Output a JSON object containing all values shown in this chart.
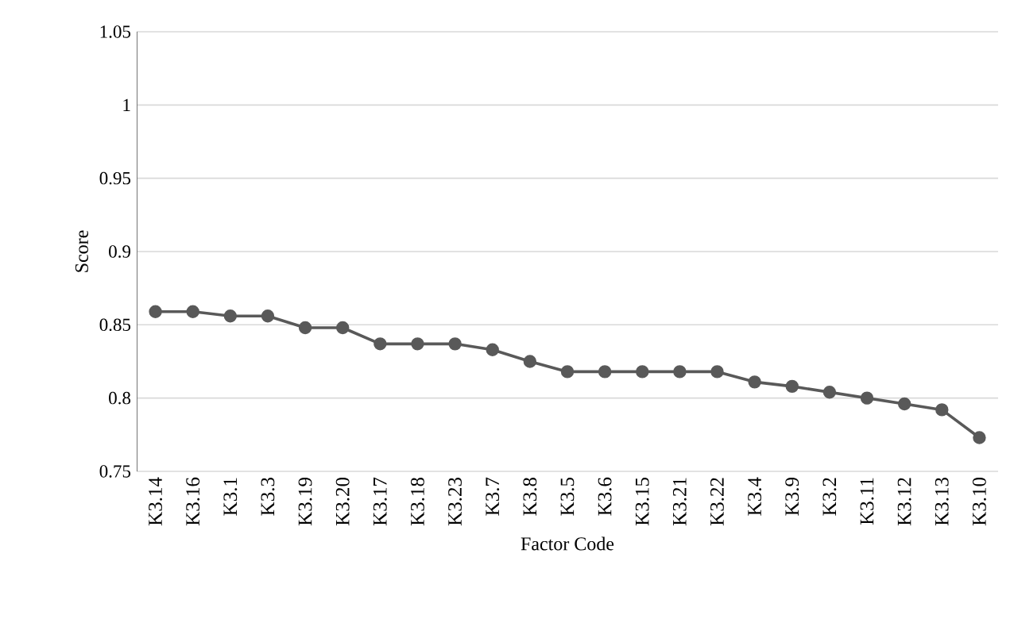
{
  "chart_data": {
    "type": "line",
    "xlabel": "Factor Code",
    "ylabel": "Score",
    "categories": [
      "K3.14",
      "K3.16",
      "K3.1",
      "K3.3",
      "K3.19",
      "K3.20",
      "K3.17",
      "K3.18",
      "K3.23",
      "K3.7",
      "K3.8",
      "K3.5",
      "K3.6",
      "K3.15",
      "K3.21",
      "K3.22",
      "K3.4",
      "K3.9",
      "K3.2",
      "K3.11",
      "K3.12",
      "K3.13",
      "K3.10"
    ],
    "series": [
      {
        "color": "#595959",
        "values": [
          0.859,
          0.859,
          0.856,
          0.856,
          0.848,
          0.848,
          0.837,
          0.837,
          0.837,
          0.833,
          0.825,
          0.818,
          0.818,
          0.818,
          0.818,
          0.818,
          0.811,
          0.808,
          0.804,
          0.8,
          0.796,
          0.792,
          0.773
        ]
      }
    ],
    "ylim": [
      0.75,
      1.05
    ],
    "yticks": [
      0.75,
      0.8,
      0.85,
      0.9,
      0.95,
      1,
      1.05
    ],
    "grid": "y",
    "marker": "circle",
    "line_style": "solid"
  }
}
